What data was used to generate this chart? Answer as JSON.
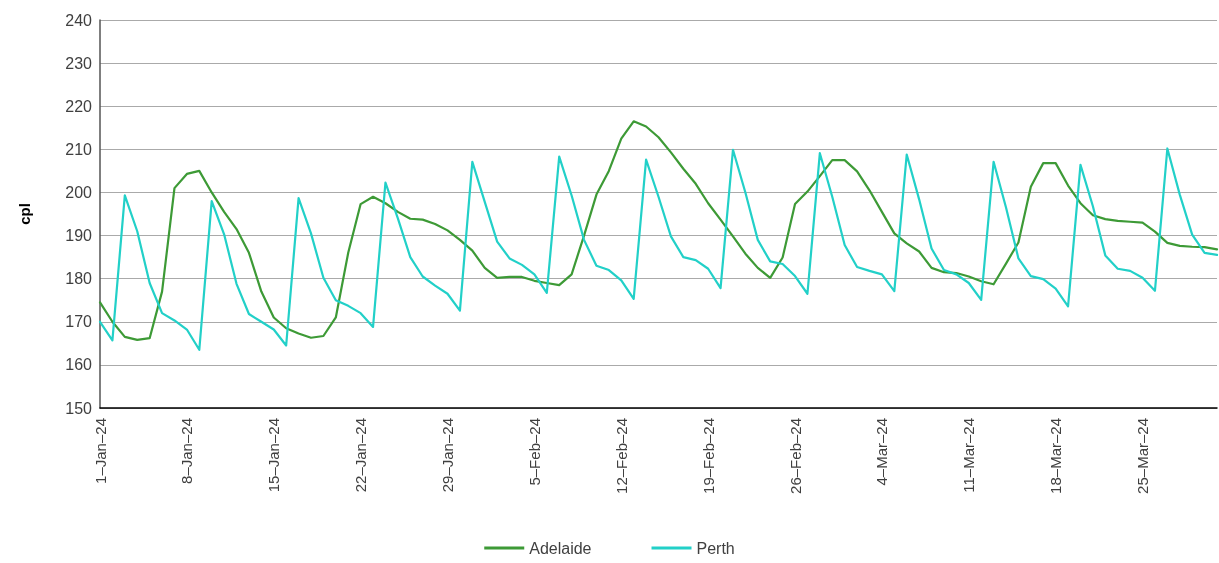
{
  "chart_data": {
    "type": "line",
    "ylabel": "cpl",
    "ylim": [
      150,
      240
    ],
    "yticks": [
      150,
      160,
      170,
      180,
      190,
      200,
      210,
      220,
      230,
      240
    ],
    "grid": "y",
    "legend": "bottom",
    "marker": "none",
    "line_style": "solid",
    "categories": [
      "1–Jan–24",
      null,
      null,
      null,
      null,
      null,
      null,
      "8–Jan–24",
      null,
      null,
      null,
      null,
      null,
      null,
      "15–Jan–24",
      null,
      null,
      null,
      null,
      null,
      null,
      "22–Jan–24",
      null,
      null,
      null,
      null,
      null,
      null,
      "29–Jan–24",
      null,
      null,
      null,
      null,
      null,
      null,
      "5–Feb–24",
      null,
      null,
      null,
      null,
      null,
      null,
      "12–Feb–24",
      null,
      null,
      null,
      null,
      null,
      null,
      "19–Feb–24",
      null,
      null,
      null,
      null,
      null,
      null,
      "26–Feb–24",
      null,
      null,
      null,
      null,
      null,
      null,
      "4–Mar–24",
      null,
      null,
      null,
      null,
      null,
      null,
      "11–Mar–24",
      null,
      null,
      null,
      null,
      null,
      null,
      "18–Mar–24",
      null,
      null,
      null,
      null,
      null,
      null,
      "25–Mar–24",
      null,
      null,
      null,
      null,
      null,
      null
    ],
    "series": [
      {
        "name": "Adelaide",
        "color": "#3d9a36",
        "values": [
          174.5,
          170,
          166.5,
          165.8,
          166.2,
          177,
          201,
          204.3,
          205,
          200,
          195.5,
          191.5,
          186,
          177,
          171,
          168.5,
          167.3,
          166.3,
          166.7,
          171,
          186,
          197.3,
          199,
          197.5,
          195.5,
          193.9,
          193.7,
          192.7,
          191.2,
          189,
          186.5,
          182.5,
          180.2,
          180.4,
          180.4,
          179.5,
          179,
          178.5,
          181,
          190,
          199.5,
          205,
          212.5,
          216.5,
          215.3,
          212.8,
          209.3,
          205.5,
          202,
          197.5,
          193.7,
          189.8,
          185.8,
          182.5,
          180.2,
          184.9,
          197.3,
          200.2,
          203.8,
          207.5,
          207.5,
          204.9,
          200.5,
          195.5,
          190.5,
          188.2,
          186.3,
          182.5,
          181.5,
          181.3,
          180.5,
          179.4,
          178.7,
          183.5,
          188.4,
          201.3,
          206.8,
          206.8,
          201.6,
          197.5,
          194.7,
          193.8,
          193.4,
          193.2,
          193,
          190.9,
          188.3,
          187.6,
          187.4,
          187.3,
          186.8
        ]
      },
      {
        "name": "Perth",
        "color": "#22d0c8",
        "values": [
          170,
          165.7,
          199.3,
          191,
          179,
          172,
          170.3,
          168.2,
          163.5,
          198,
          190.3,
          178.8,
          171.8,
          170,
          168.2,
          164.5,
          198.7,
          190.5,
          180.2,
          175,
          173.7,
          172,
          168.8,
          202.3,
          194,
          185,
          180.5,
          178.4,
          176.5,
          172.6,
          207.1,
          197.8,
          188.6,
          184.7,
          183.2,
          181,
          176.7,
          208.3,
          199.3,
          189,
          183,
          182,
          179.6,
          175.3,
          207.6,
          199,
          189.8,
          185,
          184.3,
          182.3,
          177.8,
          209.9,
          200,
          189,
          184,
          183.4,
          180.6,
          176.5,
          209.1,
          199,
          187.8,
          182.7,
          181.8,
          181,
          177.1,
          208.8,
          198.4,
          187,
          182,
          181,
          179,
          175.1,
          207.1,
          196.5,
          184.7,
          180.6,
          179.9,
          177.7,
          173.6,
          206.4,
          196.8,
          185.4,
          182.3,
          181.8,
          180.2,
          177.2,
          210.2,
          199.5,
          190.2,
          186,
          185.5
        ]
      }
    ]
  }
}
